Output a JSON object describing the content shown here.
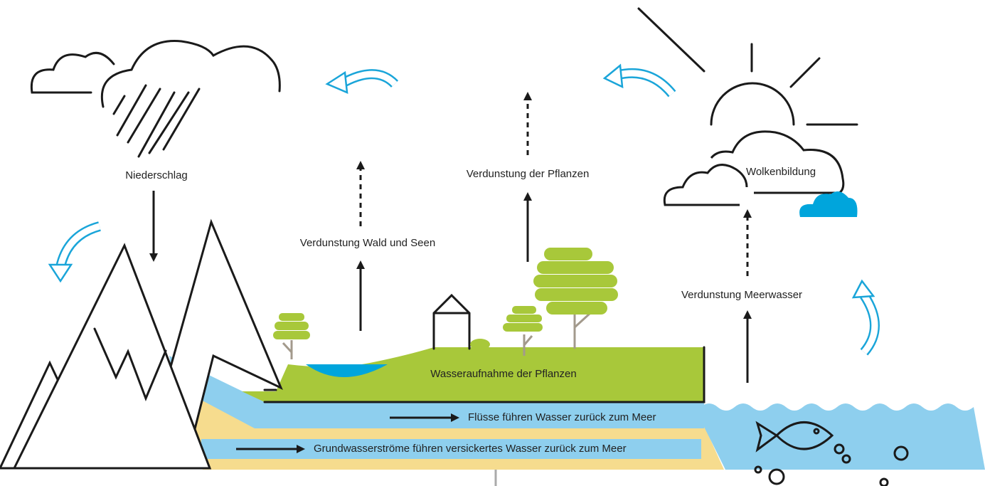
{
  "labels": [
    "Niederschlag",
    "Verdunstung Wald und Seen",
    "Verdunstung der Pflanzen",
    "Wolkenbildung",
    "Verdunstung Meerwasser",
    "Wasseraufnahme der Pflanzen",
    "Flüsse führen Wasser zurück zum Meer",
    "Grundwasserströme führen versickertes Wasser zurück zum Meer"
  ]
}
